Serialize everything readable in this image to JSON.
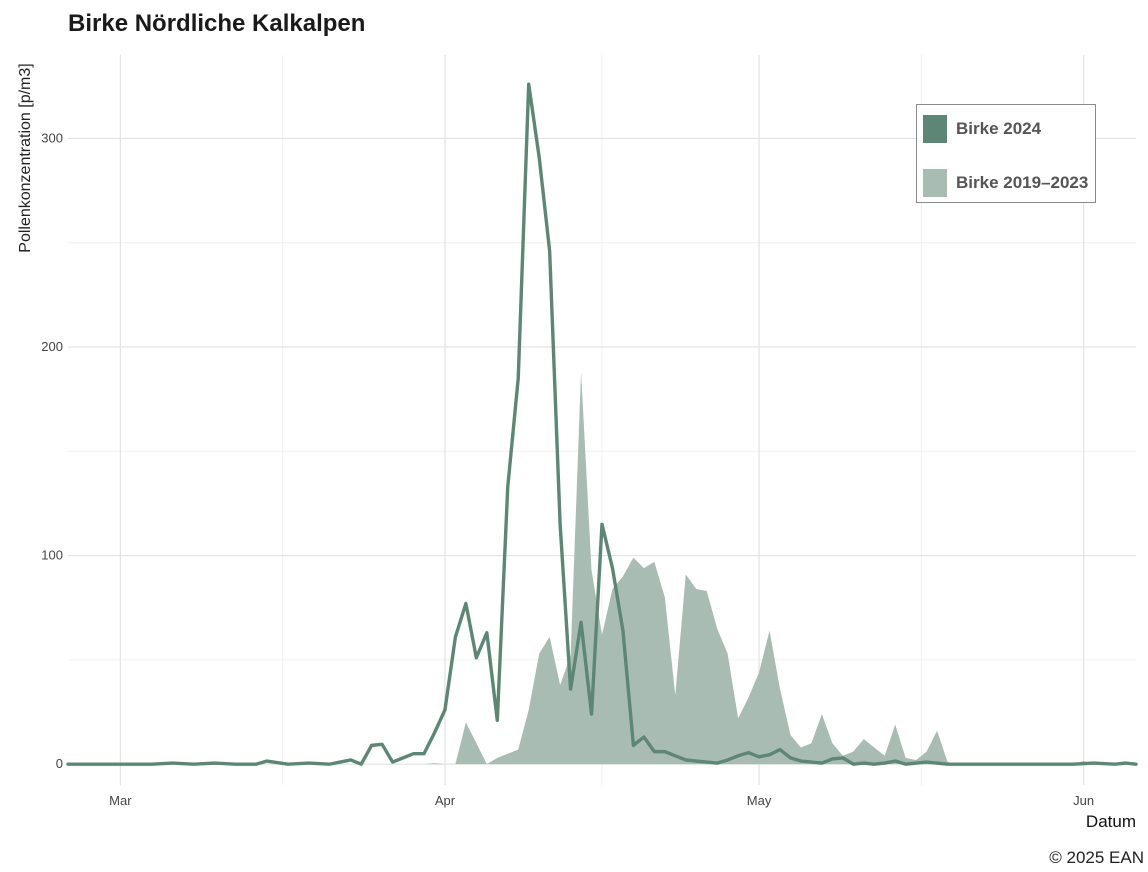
{
  "chart_data": {
    "type": "line",
    "title": "Birke Nördliche Kalkalpen",
    "xlabel": "Datum",
    "ylabel": "Pollenkonzentration [p/m3]",
    "ylim": [
      -10,
      340
    ],
    "xlim": [
      "2024-02-25",
      "2024-06-06"
    ],
    "y_ticks": [
      0,
      100,
      200,
      300
    ],
    "x_ticks": [
      {
        "date": "2024-03-01",
        "label": "Mar"
      },
      {
        "date": "2024-04-01",
        "label": "Apr"
      },
      {
        "date": "2024-05-01",
        "label": "May"
      },
      {
        "date": "2024-06-01",
        "label": "Jun"
      }
    ],
    "grid": true,
    "legend_position": "top-right",
    "copyright": "© 2025 EAN",
    "series": [
      {
        "name": "Birke 2024",
        "kind": "line",
        "color": "#5e8676",
        "points": [
          [
            "2024-02-25",
            0
          ],
          [
            "2024-03-04",
            0
          ],
          [
            "2024-03-06",
            0.5
          ],
          [
            "2024-03-08",
            0
          ],
          [
            "2024-03-10",
            0.5
          ],
          [
            "2024-03-12",
            0
          ],
          [
            "2024-03-14",
            0
          ],
          [
            "2024-03-15",
            1.5
          ],
          [
            "2024-03-17",
            0
          ],
          [
            "2024-03-19",
            0.5
          ],
          [
            "2024-03-21",
            0
          ],
          [
            "2024-03-23",
            2
          ],
          [
            "2024-03-24",
            0
          ],
          [
            "2024-03-25",
            9
          ],
          [
            "2024-03-26",
            9.5
          ],
          [
            "2024-03-27",
            1
          ],
          [
            "2024-03-28",
            3
          ],
          [
            "2024-03-29",
            5
          ],
          [
            "2024-03-30",
            5
          ],
          [
            "2024-03-31",
            15
          ],
          [
            "2024-04-01",
            26
          ],
          [
            "2024-04-02",
            61
          ],
          [
            "2024-04-03",
            77
          ],
          [
            "2024-04-04",
            51
          ],
          [
            "2024-04-05",
            63
          ],
          [
            "2024-04-06",
            21
          ],
          [
            "2024-04-07",
            133
          ],
          [
            "2024-04-08",
            185
          ],
          [
            "2024-04-09",
            326
          ],
          [
            "2024-04-10",
            291
          ],
          [
            "2024-04-11",
            246
          ],
          [
            "2024-04-12",
            115
          ],
          [
            "2024-04-13",
            36
          ],
          [
            "2024-04-14",
            68
          ],
          [
            "2024-04-15",
            24
          ],
          [
            "2024-04-16",
            115
          ],
          [
            "2024-04-17",
            94
          ],
          [
            "2024-04-18",
            64
          ],
          [
            "2024-04-19",
            9
          ],
          [
            "2024-04-20",
            13
          ],
          [
            "2024-04-21",
            6
          ],
          [
            "2024-04-22",
            6
          ],
          [
            "2024-04-23",
            4
          ],
          [
            "2024-04-24",
            2
          ],
          [
            "2024-04-25",
            1.5
          ],
          [
            "2024-04-26",
            1
          ],
          [
            "2024-04-27",
            0.5
          ],
          [
            "2024-04-28",
            2
          ],
          [
            "2024-04-29",
            4
          ],
          [
            "2024-04-30",
            5.5
          ],
          [
            "2024-05-01",
            3.5
          ],
          [
            "2024-05-02",
            4.5
          ],
          [
            "2024-05-03",
            7
          ],
          [
            "2024-05-04",
            3
          ],
          [
            "2024-05-05",
            1.5
          ],
          [
            "2024-05-06",
            1
          ],
          [
            "2024-05-07",
            0.5
          ],
          [
            "2024-05-08",
            2.5
          ],
          [
            "2024-05-09",
            3
          ],
          [
            "2024-05-10",
            0
          ],
          [
            "2024-05-11",
            0.5
          ],
          [
            "2024-05-12",
            0
          ],
          [
            "2024-05-13",
            0.5
          ],
          [
            "2024-05-14",
            1.5
          ],
          [
            "2024-05-15",
            0
          ],
          [
            "2024-05-17",
            1
          ],
          [
            "2024-05-19",
            0
          ],
          [
            "2024-05-21",
            0
          ],
          [
            "2024-05-23",
            0
          ],
          [
            "2024-05-25",
            0
          ],
          [
            "2024-05-27",
            0
          ],
          [
            "2024-05-29",
            0
          ],
          [
            "2024-05-31",
            0
          ],
          [
            "2024-06-02",
            0.5
          ],
          [
            "2024-06-04",
            0
          ],
          [
            "2024-06-05",
            0.5
          ],
          [
            "2024-06-06",
            0
          ]
        ]
      },
      {
        "name": "Birke 2019–2023",
        "kind": "area",
        "color": "#a8bcb4",
        "points": [
          [
            "2024-02-25",
            0
          ],
          [
            "2024-03-29",
            0
          ],
          [
            "2024-03-30",
            0
          ],
          [
            "2024-03-31",
            0.5
          ],
          [
            "2024-04-01",
            0
          ],
          [
            "2024-04-02",
            0
          ],
          [
            "2024-04-03",
            20
          ],
          [
            "2024-04-04",
            10
          ],
          [
            "2024-04-05",
            0
          ],
          [
            "2024-04-06",
            3
          ],
          [
            "2024-04-07",
            5
          ],
          [
            "2024-04-08",
            7
          ],
          [
            "2024-04-09",
            26
          ],
          [
            "2024-04-10",
            53
          ],
          [
            "2024-04-11",
            61
          ],
          [
            "2024-04-12",
            38
          ],
          [
            "2024-04-13",
            52
          ],
          [
            "2024-04-14",
            188
          ],
          [
            "2024-04-15",
            93
          ],
          [
            "2024-04-16",
            62
          ],
          [
            "2024-04-17",
            84
          ],
          [
            "2024-04-18",
            90
          ],
          [
            "2024-04-19",
            99
          ],
          [
            "2024-04-20",
            94
          ],
          [
            "2024-04-21",
            97
          ],
          [
            "2024-04-22",
            80
          ],
          [
            "2024-04-23",
            33
          ],
          [
            "2024-04-24",
            91
          ],
          [
            "2024-04-25",
            84
          ],
          [
            "2024-04-26",
            83
          ],
          [
            "2024-04-27",
            65
          ],
          [
            "2024-04-28",
            53
          ],
          [
            "2024-04-29",
            22
          ],
          [
            "2024-04-30",
            32
          ],
          [
            "2024-05-01",
            44
          ],
          [
            "2024-05-02",
            64
          ],
          [
            "2024-05-03",
            36
          ],
          [
            "2024-05-04",
            14
          ],
          [
            "2024-05-05",
            8
          ],
          [
            "2024-05-06",
            10
          ],
          [
            "2024-05-07",
            24
          ],
          [
            "2024-05-08",
            10
          ],
          [
            "2024-05-09",
            4
          ],
          [
            "2024-05-10",
            6
          ],
          [
            "2024-05-11",
            12
          ],
          [
            "2024-05-12",
            8
          ],
          [
            "2024-05-13",
            4
          ],
          [
            "2024-05-14",
            19
          ],
          [
            "2024-05-15",
            3
          ],
          [
            "2024-05-16",
            2
          ],
          [
            "2024-05-17",
            6
          ],
          [
            "2024-05-18",
            16
          ],
          [
            "2024-05-19",
            1
          ],
          [
            "2024-05-20",
            0
          ],
          [
            "2024-05-21",
            0
          ],
          [
            "2024-05-31",
            0
          ],
          [
            "2024-06-01",
            1.5
          ],
          [
            "2024-06-02",
            0
          ],
          [
            "2024-06-06",
            0
          ]
        ]
      }
    ]
  }
}
